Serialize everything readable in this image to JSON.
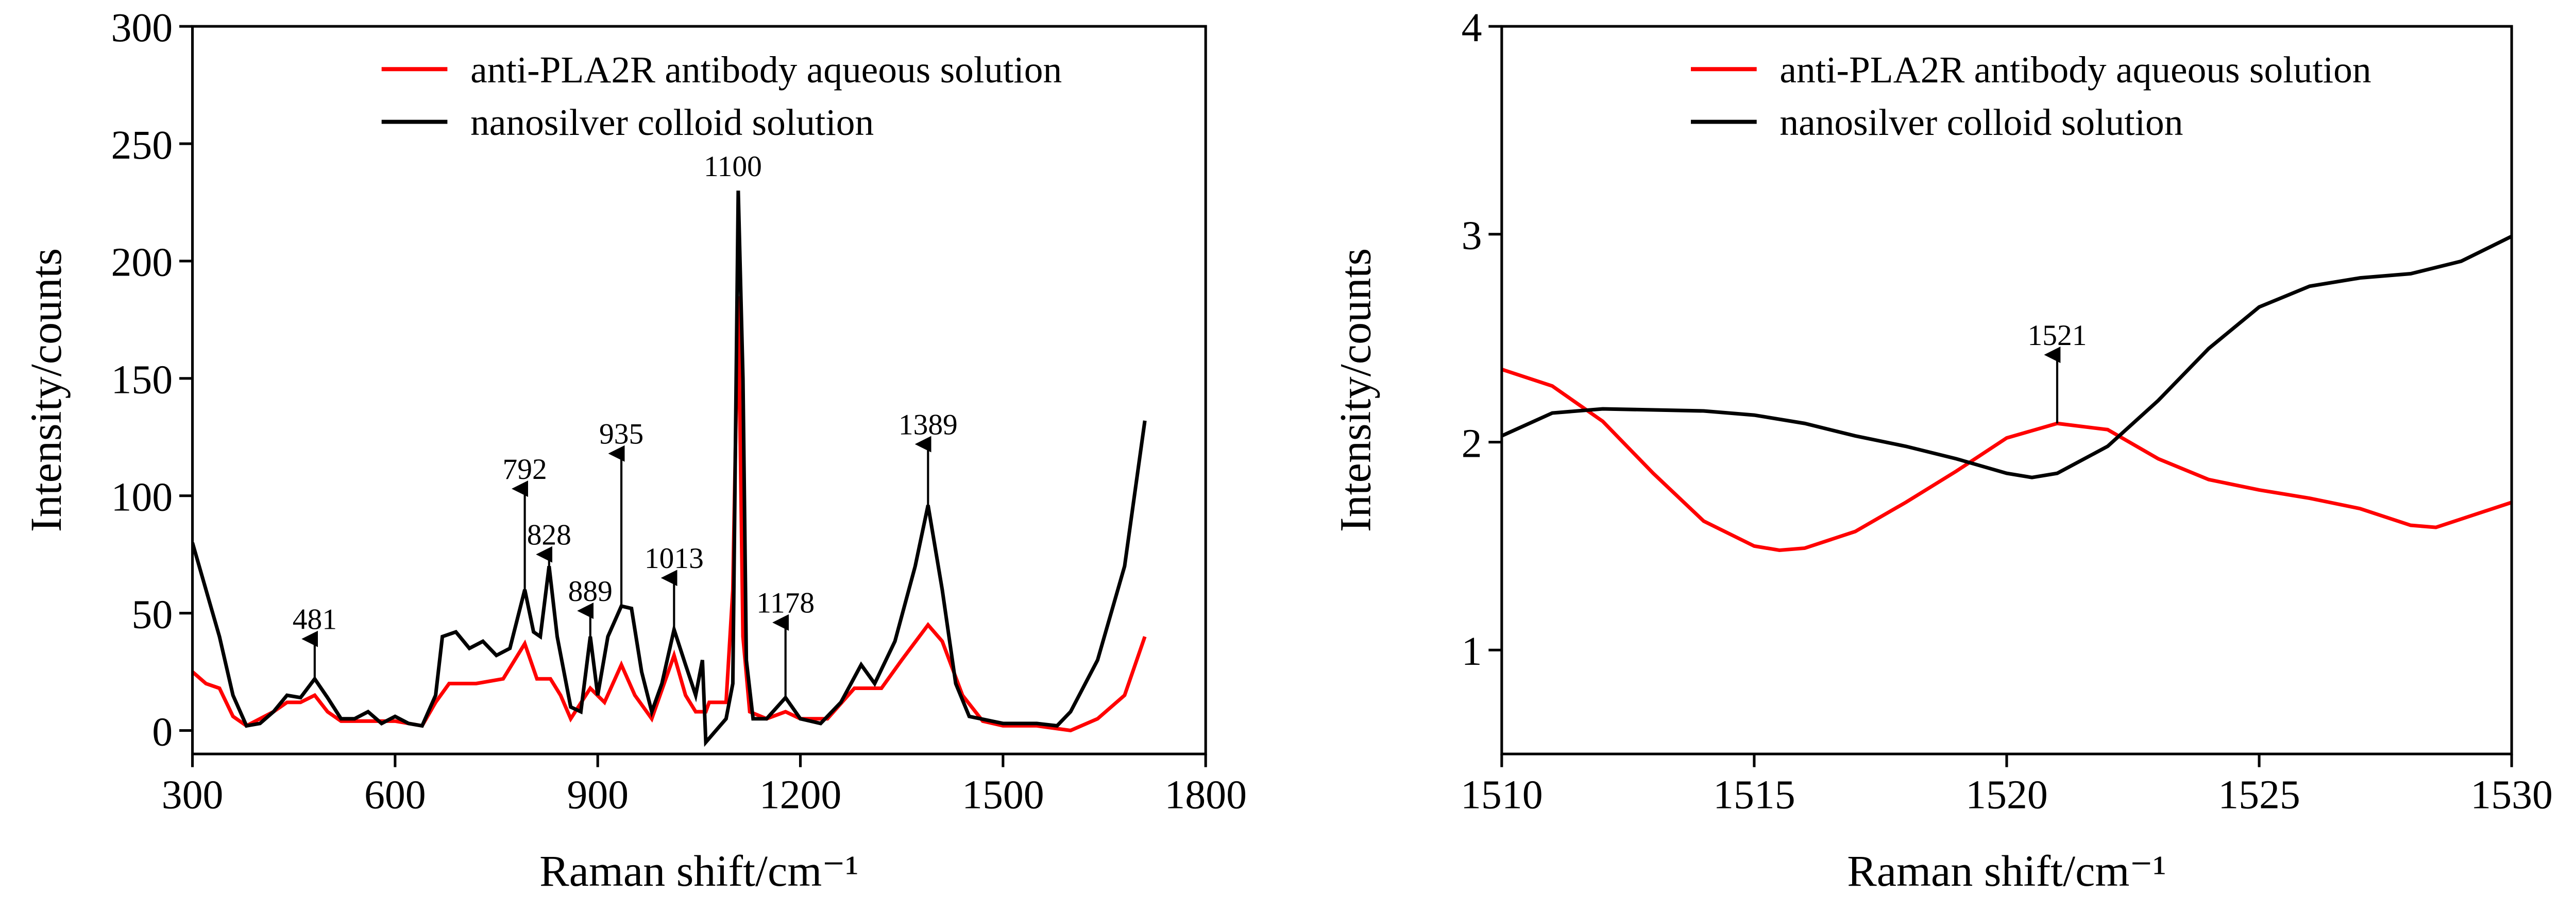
{
  "chart_data": [
    {
      "type": "line",
      "x_label": "Raman shift/cm⁻¹",
      "y_label": "Intensity/counts",
      "xlim": [
        300,
        1800
      ],
      "xticks": [
        300,
        600,
        900,
        1200,
        1500,
        1800
      ],
      "ylim": [
        -10,
        300
      ],
      "yticks": [
        0,
        50,
        100,
        150,
        200,
        250,
        300
      ],
      "series": [
        {
          "name": "anti-PLA2R antibody aqueous solution",
          "color": "#ff0000",
          "x": [
            300,
            320,
            340,
            360,
            380,
            400,
            420,
            440,
            460,
            481,
            500,
            520,
            560,
            600,
            640,
            660,
            680,
            720,
            760,
            792,
            810,
            830,
            845,
            860,
            889,
            910,
            935,
            955,
            980,
            1013,
            1030,
            1045,
            1060,
            1065,
            1090,
            1100,
            1108,
            1115,
            1125,
            1150,
            1178,
            1200,
            1240,
            1280,
            1320,
            1350,
            1389,
            1410,
            1440,
            1470,
            1500,
            1550,
            1600,
            1640,
            1680,
            1710
          ],
          "values": [
            25,
            20,
            18,
            6,
            2,
            5,
            8,
            12,
            12,
            15,
            8,
            4,
            4,
            4,
            2,
            12,
            20,
            20,
            22,
            37,
            22,
            22,
            15,
            5,
            18,
            12,
            28,
            15,
            5,
            32,
            15,
            8,
            8,
            12,
            12,
            60,
            185,
            40,
            8,
            5,
            8,
            5,
            5,
            18,
            18,
            30,
            45,
            38,
            15,
            4,
            2,
            2,
            0,
            5,
            15,
            40
          ]
        },
        {
          "name": "nanosilver colloid solution",
          "color": "#000000",
          "x": [
            300,
            320,
            340,
            360,
            380,
            400,
            420,
            440,
            460,
            481,
            500,
            520,
            540,
            560,
            580,
            600,
            620,
            640,
            660,
            670,
            690,
            710,
            730,
            750,
            770,
            792,
            805,
            815,
            828,
            840,
            860,
            875,
            889,
            900,
            915,
            935,
            950,
            965,
            980,
            995,
            1013,
            1030,
            1045,
            1055,
            1060,
            1075,
            1090,
            1100,
            1108,
            1115,
            1120,
            1130,
            1150,
            1178,
            1200,
            1230,
            1260,
            1290,
            1310,
            1340,
            1370,
            1389,
            1410,
            1430,
            1450,
            1500,
            1550,
            1580,
            1600,
            1640,
            1680,
            1710
          ],
          "values": [
            80,
            60,
            40,
            15,
            2,
            3,
            8,
            15,
            14,
            22,
            14,
            5,
            5,
            8,
            3,
            6,
            3,
            2,
            15,
            40,
            42,
            35,
            38,
            32,
            35,
            60,
            42,
            40,
            70,
            40,
            10,
            8,
            40,
            15,
            40,
            53,
            52,
            25,
            8,
            20,
            43,
            28,
            15,
            30,
            -5,
            0,
            5,
            20,
            230,
            150,
            30,
            5,
            5,
            14,
            5,
            3,
            12,
            28,
            20,
            38,
            70,
            96,
            60,
            20,
            6,
            3,
            3,
            2,
            8,
            30,
            70,
            132
          ]
        }
      ],
      "annotations": [
        {
          "x": 481,
          "y": 39
        },
        {
          "x": 792,
          "y": 103
        },
        {
          "x": 828,
          "y": 75
        },
        {
          "x": 889,
          "y": 51
        },
        {
          "x": 935,
          "y": 118
        },
        {
          "x": 1013,
          "y": 65
        },
        {
          "x": 1100,
          "y": 232,
          "arrow": false
        },
        {
          "x": 1178,
          "y": 46
        },
        {
          "x": 1389,
          "y": 122
        }
      ]
    },
    {
      "type": "line",
      "x_label": "Raman shift/cm⁻¹",
      "y_label": "Intensity/counts",
      "xlim": [
        1510,
        1530
      ],
      "xticks": [
        1510,
        1515,
        1520,
        1525,
        1530
      ],
      "ylim": [
        0.5,
        4
      ],
      "yticks": [
        1,
        2,
        3,
        4
      ],
      "series": [
        {
          "name": "anti-PLA2R antibody aqueous solution",
          "color": "#ff0000",
          "x": [
            1510,
            1511,
            1512,
            1513,
            1514,
            1515,
            1515.5,
            1516,
            1517,
            1518,
            1519,
            1520,
            1521,
            1522,
            1523,
            1524,
            1525,
            1526,
            1527,
            1528,
            1528.5,
            1529,
            1530
          ],
          "values": [
            2.35,
            2.27,
            2.1,
            1.85,
            1.62,
            1.5,
            1.48,
            1.49,
            1.57,
            1.71,
            1.86,
            2.02,
            2.09,
            2.06,
            1.92,
            1.82,
            1.77,
            1.73,
            1.68,
            1.6,
            1.59,
            1.63,
            1.71
          ]
        },
        {
          "name": "nanosilver colloid solution",
          "color": "#000000",
          "x": [
            1510,
            1511,
            1512,
            1514,
            1515,
            1516,
            1517,
            1518,
            1519,
            1520,
            1520.5,
            1521,
            1522,
            1523,
            1524,
            1525,
            1526,
            1527,
            1528,
            1529,
            1530
          ],
          "values": [
            2.03,
            2.14,
            2.16,
            2.15,
            2.13,
            2.09,
            2.03,
            1.98,
            1.92,
            1.85,
            1.83,
            1.85,
            1.98,
            2.2,
            2.45,
            2.65,
            2.75,
            2.79,
            2.81,
            2.87,
            2.99
          ]
        }
      ],
      "annotations": [
        {
          "x": 1521,
          "y": 2.42
        }
      ]
    }
  ]
}
